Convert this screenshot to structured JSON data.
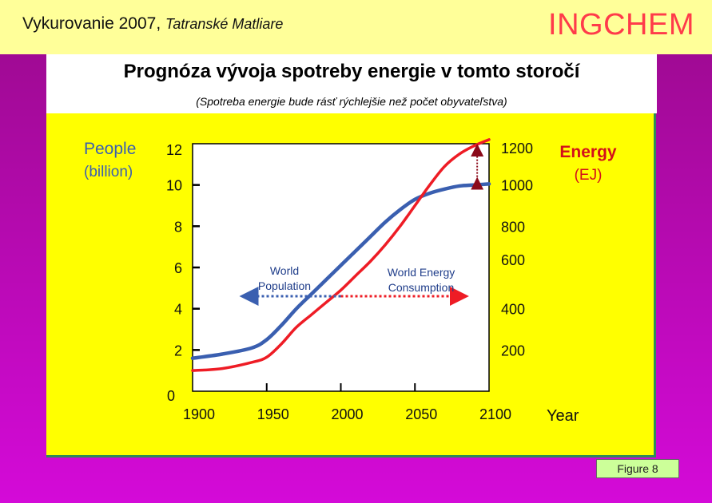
{
  "header": {
    "title": "Vykurovanie 2007,",
    "location": "Tatranské Matliare",
    "brand": "INGCHEM"
  },
  "heading": "Prognóza vývoja spotreby energie v tomto storočí",
  "subheading": "(Spotreba energie bude rásť rýchlejšie než počet obyvateľstva)",
  "figure_label": "Figure  8",
  "colors": {
    "population": "#3a5fb0",
    "energy": "#ee1c25",
    "arrow": "#8b0a1a",
    "panel": "#ffff00"
  },
  "chart_data": {
    "type": "line",
    "xlabel": "Year",
    "left_axis_label": [
      "People",
      "(billion)"
    ],
    "right_axis_label": [
      "Energy",
      "(EJ)"
    ],
    "x_ticks": [
      1900,
      1950,
      2000,
      2050,
      2100
    ],
    "left_ticks": [
      0,
      2,
      4,
      6,
      8,
      10,
      12
    ],
    "right_ticks": [
      200,
      400,
      600,
      800,
      1000,
      1200
    ],
    "xlim": [
      1900,
      2100
    ],
    "ylim_left": [
      0,
      12
    ],
    "ylim_right": [
      0,
      1200
    ],
    "series": [
      {
        "name": "World Population",
        "axis": "left",
        "x": [
          1900,
          1920,
          1940,
          1950,
          1960,
          1970,
          1980,
          1990,
          2000,
          2010,
          2020,
          2030,
          2040,
          2050,
          2060,
          2070,
          2080,
          2090,
          2100
        ],
        "values": [
          1.6,
          1.8,
          2.1,
          2.5,
          3.2,
          4.0,
          4.7,
          5.4,
          6.1,
          6.8,
          7.5,
          8.2,
          8.8,
          9.3,
          9.6,
          9.8,
          9.95,
          10.0,
          10.05
        ]
      },
      {
        "name": "World Energy Consumption",
        "axis": "right",
        "x": [
          1900,
          1920,
          1940,
          1950,
          1960,
          1970,
          1980,
          1990,
          2000,
          2010,
          2020,
          2030,
          2040,
          2050,
          2060,
          2070,
          2080,
          2090,
          2100
        ],
        "values": [
          100,
          110,
          140,
          165,
          230,
          310,
          370,
          430,
          490,
          560,
          630,
          710,
          800,
          900,
          1000,
          1090,
          1150,
          1190,
          1220
        ]
      }
    ],
    "annotations": [
      {
        "text": "World Population",
        "arrow_direction": "left",
        "arrow_from_year": 2000,
        "arrow_to_year": 1938
      },
      {
        "text": "World Energy Consumption",
        "arrow_direction": "right",
        "arrow_from_year": 2000,
        "arrow_to_year": 2080
      },
      {
        "text": "",
        "arrow_direction": "vertical",
        "year": 2092,
        "from_left_value": 10.0,
        "to_right_value": 1200
      }
    ]
  }
}
